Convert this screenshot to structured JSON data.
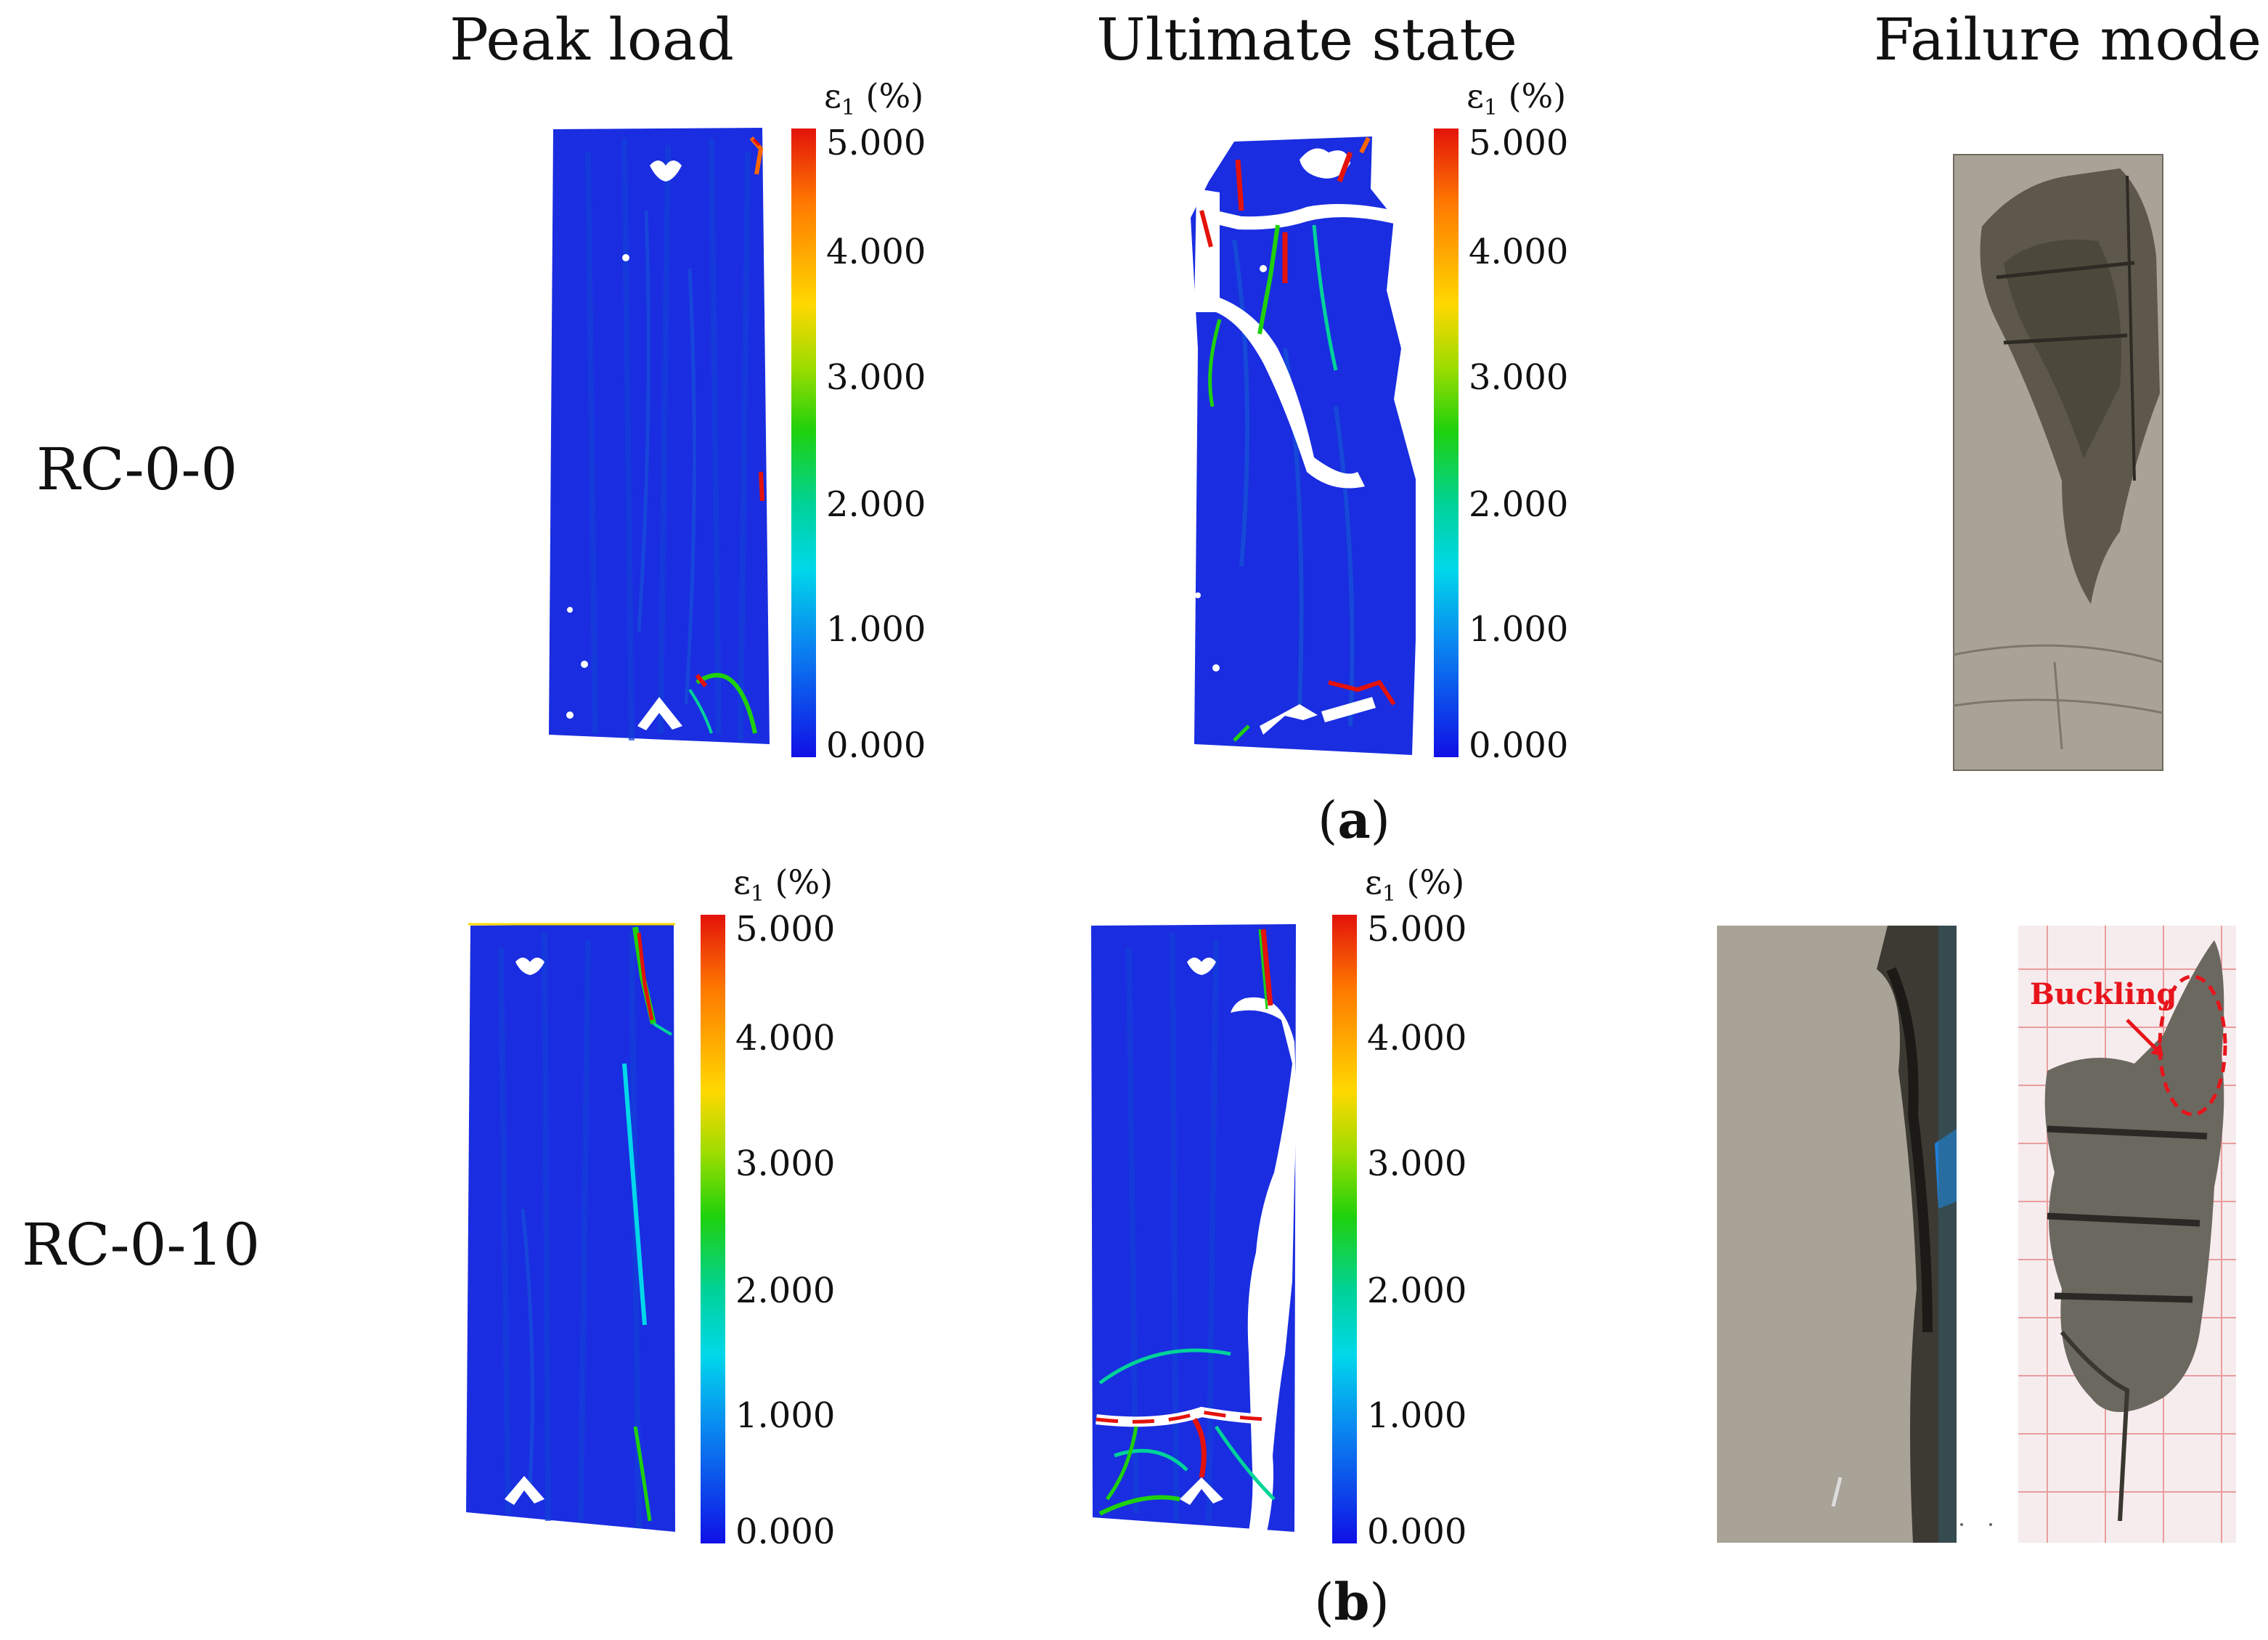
{
  "columns": {
    "peak": "Peak load",
    "ultimate": "Ultimate state",
    "failure": "Failure mode"
  },
  "rows": {
    "a_label": "RC-0-0",
    "b_label": "RC-0-10"
  },
  "subfigures": {
    "a": "a",
    "b": "b"
  },
  "colorbar": {
    "title": "ε",
    "subscript": "1",
    "unit": " (%)",
    "ticks": [
      "5.000",
      "4.000",
      "3.000",
      "2.000",
      "1.000",
      "0.000"
    ]
  },
  "annotation": {
    "buckling": "Buckling"
  },
  "colors": {
    "strain_low": "#1a2de0",
    "strain_high": "#e3120b",
    "annotation": "#e8141b"
  }
}
